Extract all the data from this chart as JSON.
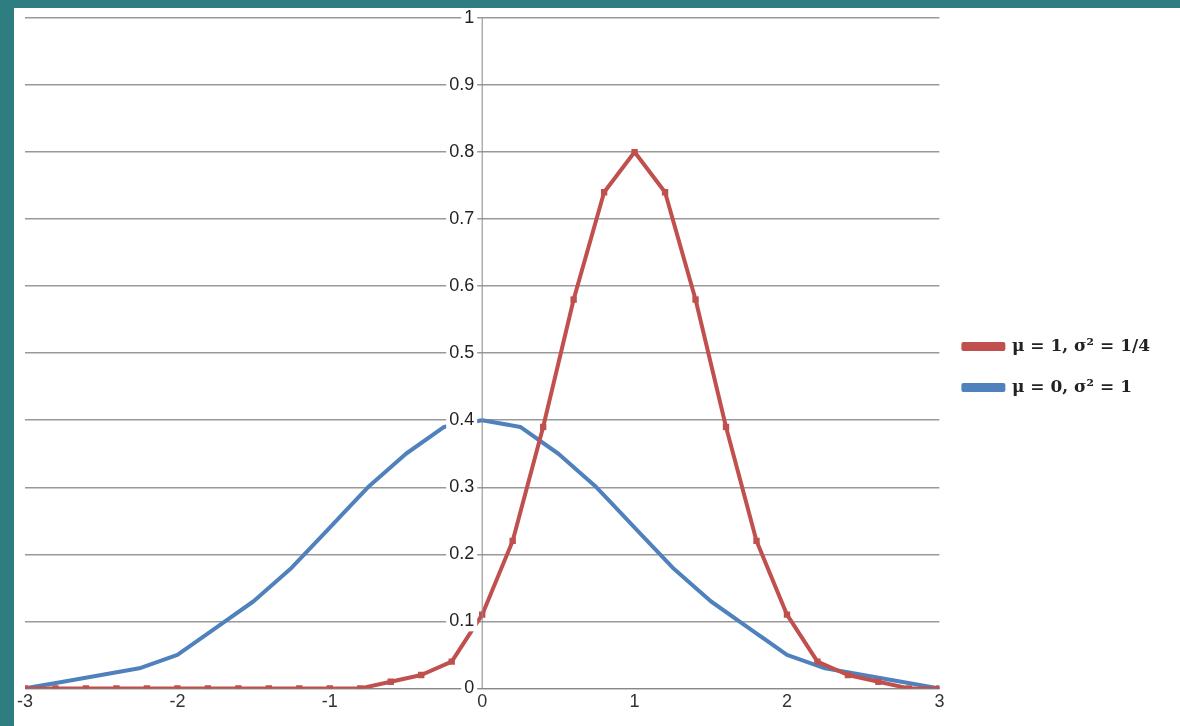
{
  "chart_data": {
    "type": "line",
    "xlim": [
      -3,
      3
    ],
    "xticks": [
      -3,
      -2,
      -1,
      0,
      1,
      2,
      3
    ],
    "ylim": [
      0,
      1
    ],
    "yticks": [
      0,
      0.1,
      0.2,
      0.3,
      0.4,
      0.5,
      0.6,
      0.7,
      0.8,
      0.9,
      1
    ],
    "grid": "y",
    "legend": "right",
    "line_style": "solid",
    "series": [
      {
        "name": "μ = 0, σ² = 1",
        "color": "#4f81bd",
        "marker": "none",
        "x": [
          -3,
          -2.75,
          -2.5,
          -2.25,
          -2,
          -1.75,
          -1.5,
          -1.25,
          -1,
          -0.75,
          -0.5,
          -0.25,
          0,
          0.25,
          0.5,
          0.75,
          1,
          1.25,
          1.5,
          1.75,
          2,
          2.25,
          2.5,
          2.75,
          3
        ],
        "values": [
          0,
          0.01,
          0.02,
          0.03,
          0.05,
          0.09,
          0.13,
          0.18,
          0.24,
          0.3,
          0.35,
          0.39,
          0.4,
          0.39,
          0.35,
          0.3,
          0.24,
          0.18,
          0.13,
          0.09,
          0.05,
          0.03,
          0.02,
          0.01,
          0
        ]
      },
      {
        "name": "μ = 1, σ² = 1/4",
        "color": "#c0504d",
        "marker": "square",
        "x": [
          -3,
          -2.8,
          -2.6,
          -2.4,
          -2.2,
          -2,
          -1.8,
          -1.6,
          -1.4,
          -1.2,
          -1,
          -0.8,
          -0.6,
          -0.4,
          -0.2,
          0,
          0.2,
          0.4,
          0.6,
          0.8,
          1,
          1.2,
          1.4,
          1.6,
          1.8,
          2,
          2.2,
          2.4,
          2.6,
          2.8,
          3
        ],
        "values": [
          0,
          0,
          0,
          0,
          0,
          0,
          0,
          0,
          0,
          0,
          0,
          0,
          0.01,
          0.02,
          0.04,
          0.11,
          0.22,
          0.39,
          0.58,
          0.74,
          0.8,
          0.74,
          0.58,
          0.39,
          0.22,
          0.11,
          0.04,
          0.02,
          0.01,
          0,
          0
        ]
      }
    ]
  }
}
